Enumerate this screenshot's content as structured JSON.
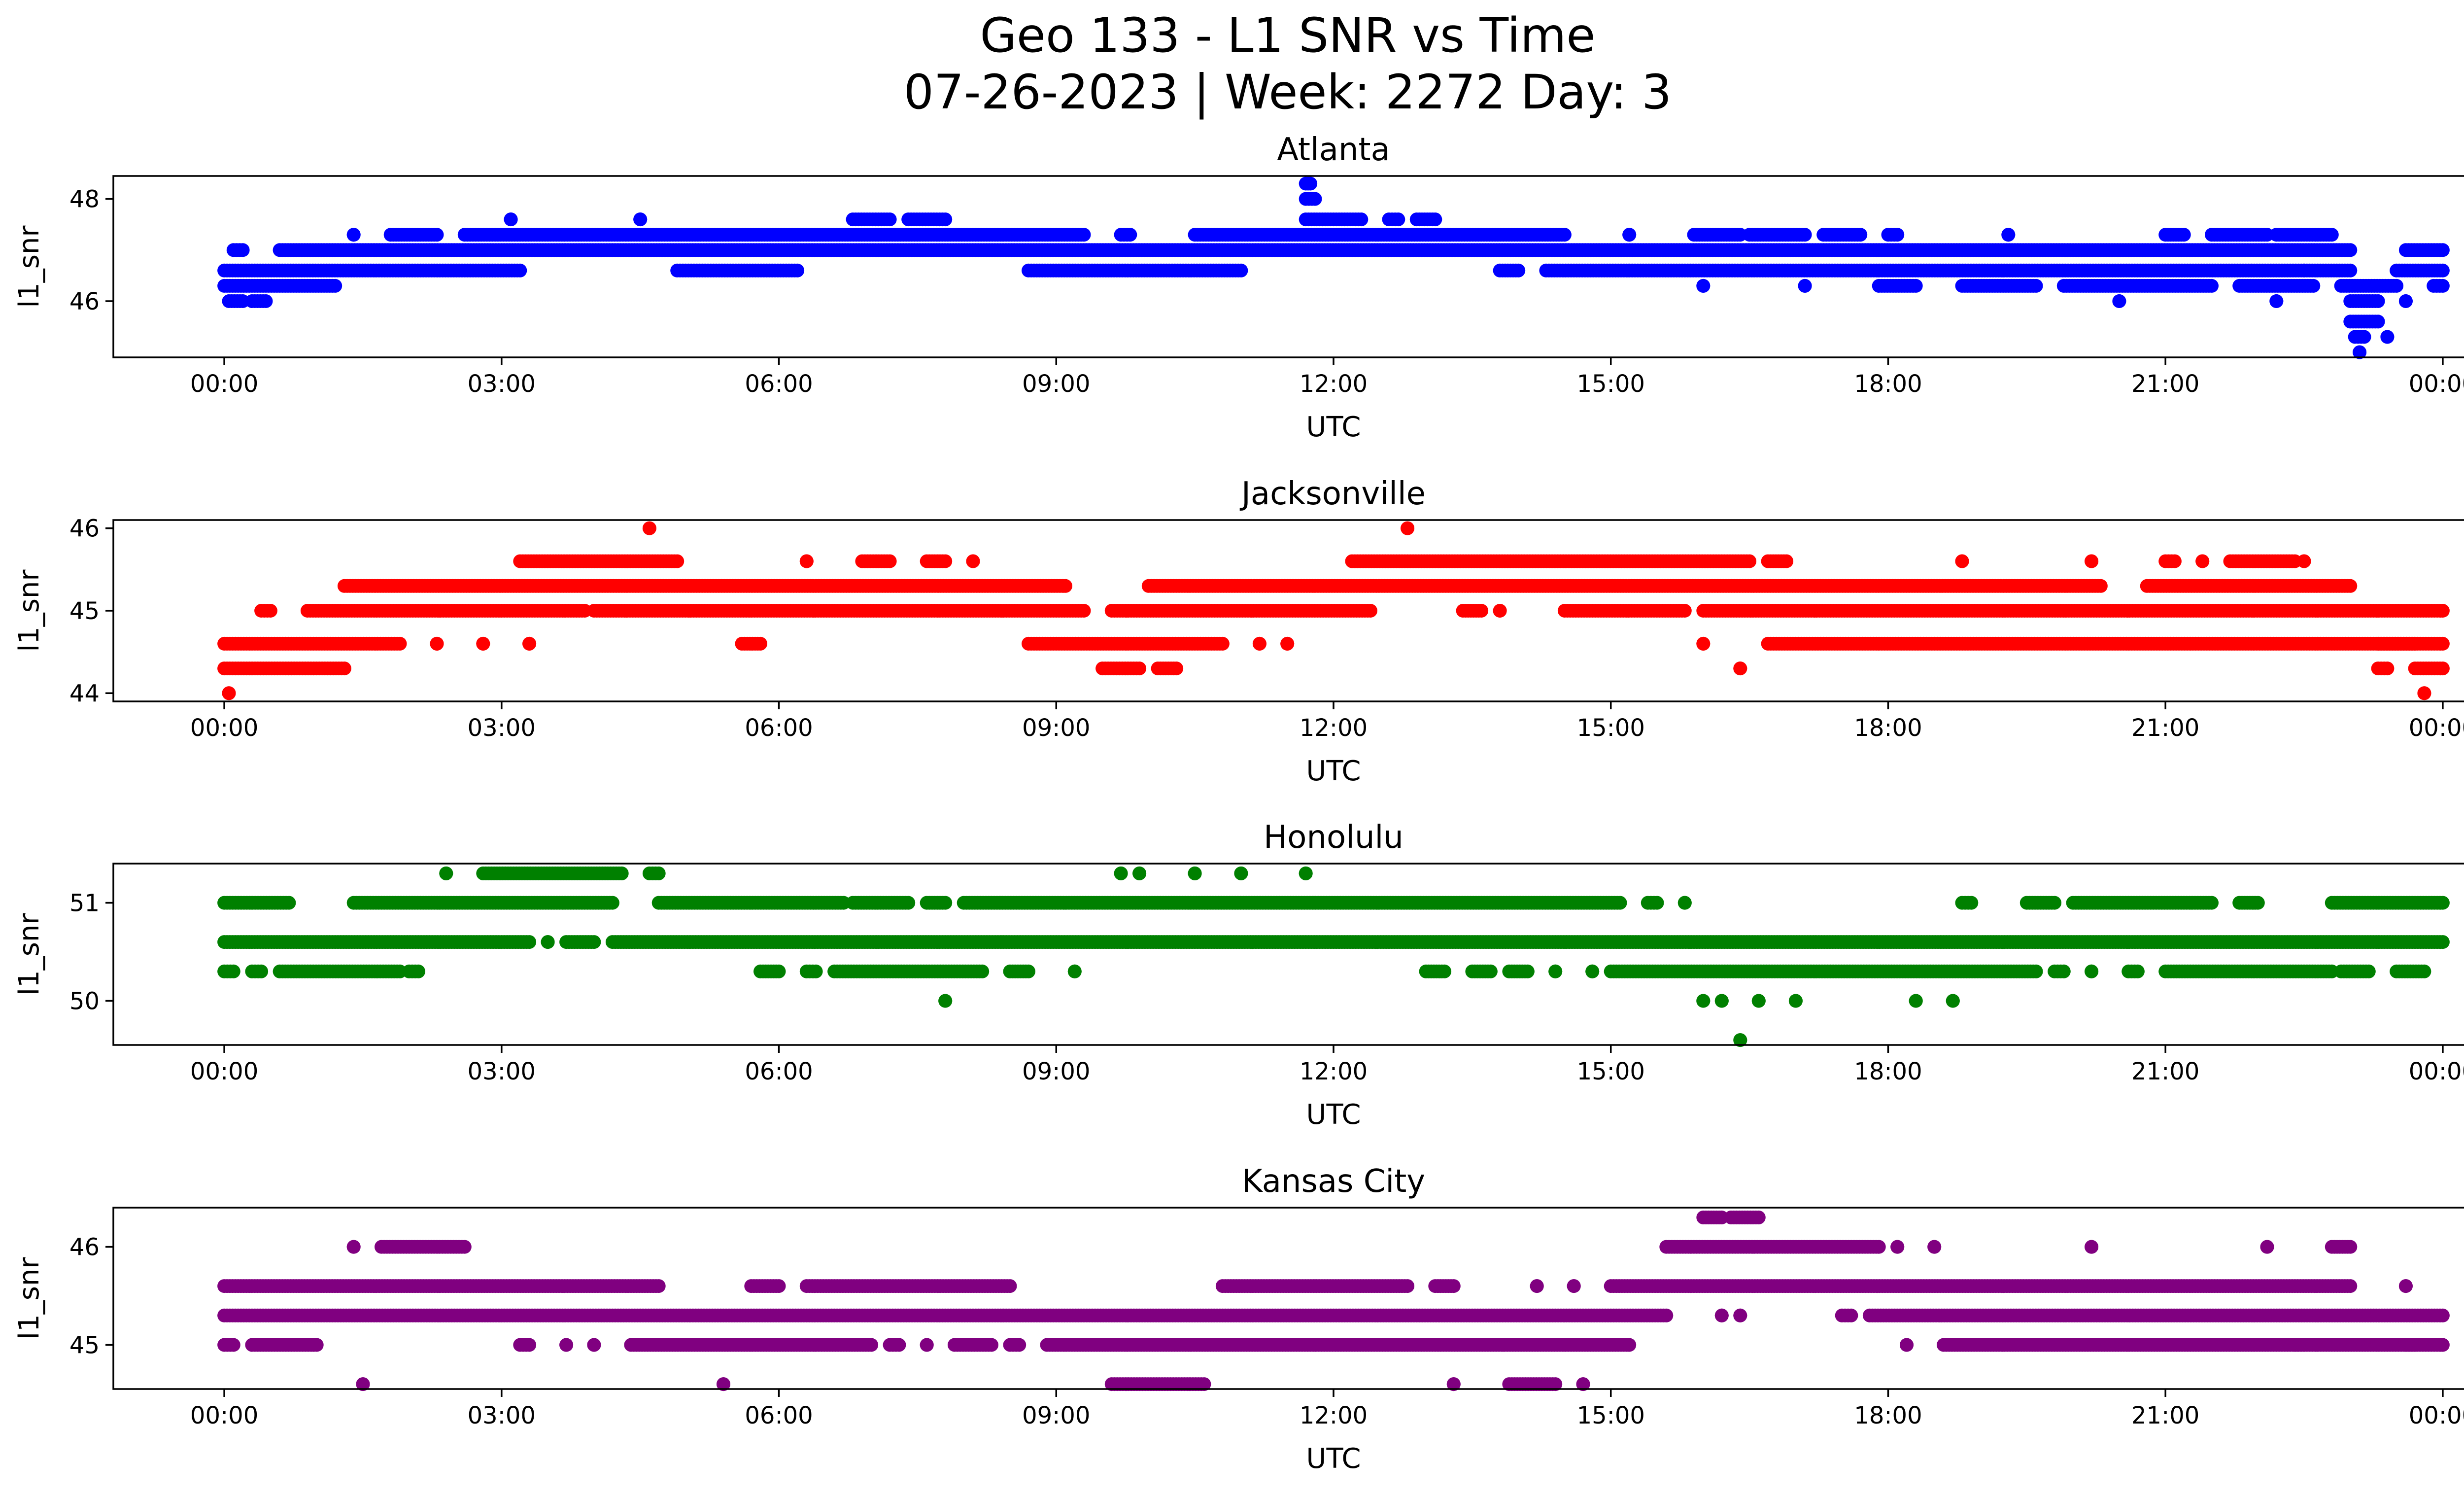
{
  "figure": {
    "title_line1": "Geo 133 - L1 SNR vs Time",
    "title_line2": "07-26-2023 | Week: 2272 Day: 3"
  },
  "chart_data": [
    {
      "type": "scatter",
      "title": "Atlanta",
      "xlabel": "UTC",
      "ylabel": "l1_snr",
      "color": "#0000ff",
      "x_ticks": [
        "00:00",
        "03:00",
        "06:00",
        "09:00",
        "12:00",
        "15:00",
        "18:00",
        "21:00",
        "00:00"
      ],
      "xlim_hours": [
        -1.2,
        25.2
      ],
      "ylim": [
        44.9,
        48.45
      ],
      "y_ticks": [
        46,
        48
      ],
      "bands": [
        {
          "y": 46.0,
          "segments": [
            [
              0.05,
              0.2
            ],
            [
              0.3,
              0.45
            ],
            [
              20.5,
              20.5
            ],
            [
              22.2,
              22.2
            ],
            [
              23.0,
              23.3
            ],
            [
              23.6,
              23.6
            ]
          ]
        },
        {
          "y": 46.3,
          "segments": [
            [
              0.0,
              1.2
            ],
            [
              16.0,
              16.0
            ],
            [
              17.1,
              17.1
            ],
            [
              17.9,
              18.3
            ],
            [
              18.8,
              19.6
            ],
            [
              19.9,
              21.5
            ],
            [
              21.8,
              22.6
            ],
            [
              22.9,
              23.5
            ],
            [
              23.9,
              24.0
            ]
          ]
        },
        {
          "y": 46.6,
          "segments": [
            [
              0.0,
              3.2
            ],
            [
              4.9,
              6.2
            ],
            [
              8.7,
              11.0
            ],
            [
              13.8,
              14.0
            ],
            [
              14.3,
              22.5
            ],
            [
              22.5,
              23.0
            ],
            [
              23.5,
              24.0
            ]
          ]
        },
        {
          "y": 47.0,
          "segments": [
            [
              0.1,
              0.2
            ],
            [
              0.6,
              23.0
            ],
            [
              23.6,
              24.0
            ]
          ]
        },
        {
          "y": 47.3,
          "segments": [
            [
              1.4,
              1.4
            ],
            [
              1.8,
              2.3
            ],
            [
              2.6,
              9.3
            ],
            [
              9.7,
              9.8
            ],
            [
              10.5,
              14.5
            ],
            [
              15.2,
              15.2
            ],
            [
              15.9,
              16.4
            ],
            [
              16.5,
              17.1
            ],
            [
              17.3,
              17.7
            ],
            [
              18.0,
              18.1
            ],
            [
              19.3,
              19.3
            ],
            [
              21.0,
              21.2
            ],
            [
              21.5,
              22.1
            ],
            [
              22.2,
              22.8
            ]
          ]
        },
        {
          "y": 47.6,
          "segments": [
            [
              3.1,
              3.1
            ],
            [
              4.5,
              4.5
            ],
            [
              6.8,
              7.2
            ],
            [
              7.4,
              7.8
            ],
            [
              11.7,
              12.3
            ],
            [
              12.6,
              12.7
            ],
            [
              12.9,
              13.1
            ]
          ]
        },
        {
          "y": 48.0,
          "segments": [
            [
              11.7,
              11.8
            ]
          ]
        },
        {
          "y": 48.3,
          "segments": [
            [
              11.7,
              11.75
            ]
          ]
        },
        {
          "y": 45.6,
          "segments": [
            [
              23.0,
              23.3
            ]
          ]
        },
        {
          "y": 45.3,
          "segments": [
            [
              23.05,
              23.15
            ],
            [
              23.4,
              23.4
            ]
          ]
        },
        {
          "y": 45.0,
          "segments": [
            [
              23.1,
              23.1
            ]
          ]
        }
      ]
    },
    {
      "type": "scatter",
      "title": "Jacksonville",
      "xlabel": "UTC",
      "ylabel": "l1_snr",
      "color": "#ff0000",
      "x_ticks": [
        "00:00",
        "03:00",
        "06:00",
        "09:00",
        "12:00",
        "15:00",
        "18:00",
        "21:00",
        "00:00"
      ],
      "xlim_hours": [
        -1.2,
        25.2
      ],
      "ylim": [
        43.9,
        46.1
      ],
      "y_ticks": [
        44,
        45,
        46
      ],
      "bands": [
        {
          "y": 44.0,
          "segments": [
            [
              0.05,
              0.05
            ],
            [
              23.8,
              23.8
            ]
          ]
        },
        {
          "y": 44.3,
          "segments": [
            [
              0.0,
              1.3
            ],
            [
              9.5,
              9.9
            ],
            [
              10.1,
              10.3
            ],
            [
              16.4,
              16.4
            ],
            [
              23.3,
              23.4
            ],
            [
              23.7,
              24.0
            ]
          ]
        },
        {
          "y": 44.6,
          "segments": [
            [
              0.0,
              1.9
            ],
            [
              2.3,
              2.3
            ],
            [
              2.8,
              2.8
            ],
            [
              3.3,
              3.3
            ],
            [
              5.6,
              5.8
            ],
            [
              8.7,
              10.8
            ],
            [
              11.2,
              11.2
            ],
            [
              11.5,
              11.5
            ],
            [
              16.0,
              16.0
            ],
            [
              16.7,
              23.7
            ],
            [
              23.3,
              24.0
            ]
          ]
        },
        {
          "y": 45.0,
          "segments": [
            [
              0.4,
              0.5
            ],
            [
              0.9,
              3.9
            ],
            [
              4.0,
              9.3
            ],
            [
              9.6,
              12.4
            ],
            [
              13.4,
              13.6
            ],
            [
              13.8,
              13.8
            ],
            [
              14.5,
              15.8
            ],
            [
              16.0,
              24.0
            ]
          ]
        },
        {
          "y": 45.3,
          "segments": [
            [
              1.3,
              9.1
            ],
            [
              10.0,
              20.3
            ],
            [
              20.8,
              23.0
            ]
          ]
        },
        {
          "y": 45.6,
          "segments": [
            [
              3.2,
              4.9
            ],
            [
              6.3,
              6.3
            ],
            [
              6.9,
              7.2
            ],
            [
              7.6,
              7.8
            ],
            [
              8.1,
              8.1
            ],
            [
              12.2,
              16.5
            ],
            [
              16.7,
              16.9
            ],
            [
              18.8,
              18.8
            ],
            [
              20.2,
              20.2
            ],
            [
              21.0,
              21.1
            ],
            [
              21.4,
              21.4
            ],
            [
              21.7,
              22.4
            ],
            [
              22.5,
              22.5
            ]
          ]
        },
        {
          "y": 46.0,
          "segments": [
            [
              4.6,
              4.6
            ],
            [
              12.8,
              12.8
            ]
          ]
        }
      ]
    },
    {
      "type": "scatter",
      "title": "Honolulu",
      "xlabel": "UTC",
      "ylabel": "l1_snr",
      "color": "#008000",
      "x_ticks": [
        "00:00",
        "03:00",
        "06:00",
        "09:00",
        "12:00",
        "15:00",
        "18:00",
        "21:00",
        "00:00"
      ],
      "xlim_hours": [
        -1.2,
        25.2
      ],
      "ylim": [
        49.55,
        51.4
      ],
      "y_ticks": [
        50,
        51
      ],
      "bands": [
        {
          "y": 49.6,
          "segments": [
            [
              16.4,
              16.4
            ]
          ]
        },
        {
          "y": 50.0,
          "segments": [
            [
              7.8,
              7.8
            ],
            [
              16.0,
              16.0
            ],
            [
              16.2,
              16.2
            ],
            [
              16.6,
              16.6
            ],
            [
              17.0,
              17.0
            ],
            [
              18.3,
              18.3
            ],
            [
              18.7,
              18.7
            ]
          ]
        },
        {
          "y": 50.3,
          "segments": [
            [
              0.0,
              0.1
            ],
            [
              0.3,
              0.4
            ],
            [
              0.6,
              1.9
            ],
            [
              2.0,
              2.1
            ],
            [
              5.8,
              6.0
            ],
            [
              6.3,
              6.4
            ],
            [
              6.6,
              8.2
            ],
            [
              8.5,
              8.7
            ],
            [
              9.2,
              9.2
            ],
            [
              13.0,
              13.2
            ],
            [
              13.5,
              13.7
            ],
            [
              13.9,
              14.1
            ],
            [
              14.4,
              14.4
            ],
            [
              14.8,
              14.8
            ],
            [
              15.0,
              19.6
            ],
            [
              19.8,
              19.9
            ],
            [
              20.2,
              20.2
            ],
            [
              20.6,
              20.7
            ],
            [
              21.0,
              22.8
            ],
            [
              22.9,
              23.2
            ],
            [
              23.5,
              23.8
            ]
          ]
        },
        {
          "y": 50.6,
          "segments": [
            [
              0.0,
              3.3
            ],
            [
              3.5,
              3.5
            ],
            [
              3.7,
              4.0
            ],
            [
              4.2,
              24.0
            ]
          ]
        },
        {
          "y": 51.0,
          "segments": [
            [
              0.0,
              0.7
            ],
            [
              1.4,
              4.2
            ],
            [
              4.7,
              6.7
            ],
            [
              6.8,
              7.4
            ],
            [
              7.6,
              7.8
            ],
            [
              8.0,
              15.1
            ],
            [
              15.4,
              15.5
            ],
            [
              15.8,
              15.8
            ],
            [
              18.8,
              18.9
            ],
            [
              19.5,
              19.8
            ],
            [
              20.0,
              21.5
            ],
            [
              21.8,
              22.0
            ],
            [
              22.8,
              24.0
            ]
          ]
        },
        {
          "y": 51.3,
          "segments": [
            [
              2.4,
              2.4
            ],
            [
              2.8,
              4.3
            ],
            [
              4.6,
              4.7
            ],
            [
              9.7,
              9.7
            ],
            [
              9.9,
              9.9
            ],
            [
              10.5,
              10.5
            ],
            [
              11.0,
              11.0
            ],
            [
              11.7,
              11.7
            ]
          ]
        }
      ]
    },
    {
      "type": "scatter",
      "title": "Kansas City",
      "xlabel": "UTC",
      "ylabel": "l1_snr",
      "color": "#800080",
      "x_ticks": [
        "00:00",
        "03:00",
        "06:00",
        "09:00",
        "12:00",
        "15:00",
        "18:00",
        "21:00",
        "00:00"
      ],
      "xlim_hours": [
        -1.2,
        25.2
      ],
      "ylim": [
        44.55,
        46.4
      ],
      "y_ticks": [
        45,
        46
      ],
      "bands": [
        {
          "y": 44.6,
          "segments": [
            [
              1.5,
              1.5
            ],
            [
              5.4,
              5.4
            ],
            [
              9.6,
              10.6
            ],
            [
              13.3,
              13.3
            ],
            [
              13.9,
              14.4
            ],
            [
              14.7,
              14.7
            ]
          ]
        },
        {
          "y": 45.0,
          "segments": [
            [
              0.0,
              0.1
            ],
            [
              0.3,
              1.0
            ],
            [
              3.2,
              3.3
            ],
            [
              3.7,
              3.7
            ],
            [
              4.0,
              4.0
            ],
            [
              4.4,
              7.0
            ],
            [
              7.2,
              7.3
            ],
            [
              7.6,
              7.6
            ],
            [
              7.9,
              8.3
            ],
            [
              8.5,
              8.6
            ],
            [
              8.9,
              15.2
            ],
            [
              18.2,
              18.2
            ],
            [
              18.6,
              23.7
            ],
            [
              22.4,
              22.5
            ],
            [
              23.6,
              24.0
            ]
          ]
        },
        {
          "y": 45.3,
          "segments": [
            [
              0.0,
              15.6
            ],
            [
              16.2,
              16.2
            ],
            [
              16.4,
              16.4
            ],
            [
              17.5,
              17.6
            ],
            [
              17.8,
              24.0
            ]
          ]
        },
        {
          "y": 45.6,
          "segments": [
            [
              0.0,
              4.7
            ],
            [
              5.7,
              6.0
            ],
            [
              6.3,
              8.5
            ],
            [
              10.8,
              12.8
            ],
            [
              13.1,
              13.3
            ],
            [
              14.2,
              14.2
            ],
            [
              14.6,
              14.6
            ],
            [
              15.0,
              23.0
            ],
            [
              23.6,
              23.6
            ]
          ]
        },
        {
          "y": 46.0,
          "segments": [
            [
              1.4,
              1.4
            ],
            [
              1.7,
              2.6
            ],
            [
              15.6,
              17.9
            ],
            [
              18.1,
              18.1
            ],
            [
              18.5,
              18.5
            ],
            [
              20.2,
              20.2
            ],
            [
              22.1,
              22.1
            ],
            [
              22.8,
              23.0
            ]
          ]
        },
        {
          "y": 46.3,
          "segments": [
            [
              16.0,
              16.2
            ],
            [
              16.3,
              16.6
            ]
          ]
        }
      ]
    }
  ]
}
